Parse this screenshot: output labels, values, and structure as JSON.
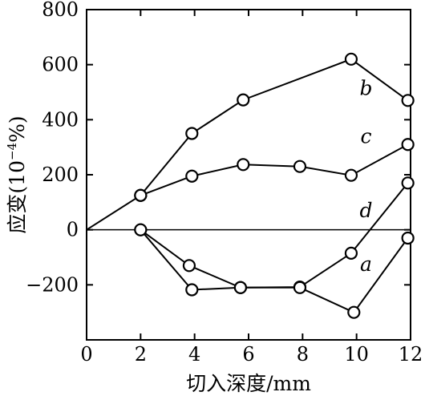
{
  "chart_data": {
    "type": "line",
    "title": "",
    "xlabel": "切入深度/mm",
    "ylabel_cjk": "应变",
    "ylabel_unit_open": "(10",
    "ylabel_unit_exp": "−4",
    "ylabel_unit_close": "%)",
    "xlim": [
      0,
      12
    ],
    "ylim": [
      -400,
      800
    ],
    "x_ticks": [
      {
        "value": 0,
        "label": "0"
      },
      {
        "value": 2,
        "label": "2"
      },
      {
        "value": 4,
        "label": "4"
      },
      {
        "value": 6,
        "label": "6"
      },
      {
        "value": 8,
        "label": "8"
      },
      {
        "value": 10,
        "label": "10"
      },
      {
        "value": 12,
        "label": "12"
      }
    ],
    "y_ticks": [
      {
        "value": 800,
        "label": "800"
      },
      {
        "value": 600,
        "label": "600"
      },
      {
        "value": 400,
        "label": "400"
      },
      {
        "value": 200,
        "label": "200"
      },
      {
        "value": 0,
        "label": "0"
      },
      {
        "value": -200,
        "label": "−200"
      }
    ],
    "grid": false,
    "zero_line": true,
    "series": [
      {
        "name": "b",
        "points": [
          [
            0,
            0
          ],
          [
            2,
            125
          ],
          [
            3.9,
            350
          ],
          [
            5.8,
            472
          ],
          [
            9.8,
            620
          ],
          [
            11.9,
            470
          ]
        ],
        "label_at": [
          10.35,
          490
        ]
      },
      {
        "name": "c",
        "points": [
          [
            2,
            125
          ],
          [
            3.9,
            195
          ],
          [
            5.8,
            237
          ],
          [
            7.9,
            230
          ],
          [
            9.8,
            198
          ],
          [
            11.9,
            310
          ]
        ],
        "label_at": [
          10.35,
          315
        ]
      },
      {
        "name": "d",
        "points": [
          [
            2,
            0
          ],
          [
            3.8,
            -130
          ],
          [
            5.7,
            -210
          ],
          [
            7.9,
            -208
          ],
          [
            9.8,
            -85
          ],
          [
            11.9,
            170
          ]
        ],
        "label_at": [
          10.35,
          45
        ]
      },
      {
        "name": "a",
        "points": [
          [
            2,
            0
          ],
          [
            3.9,
            -218
          ],
          [
            5.7,
            -210
          ],
          [
            7.9,
            -210
          ],
          [
            9.9,
            -300
          ],
          [
            11.9,
            -30
          ]
        ],
        "label_at": [
          10.35,
          -150
        ]
      }
    ]
  }
}
